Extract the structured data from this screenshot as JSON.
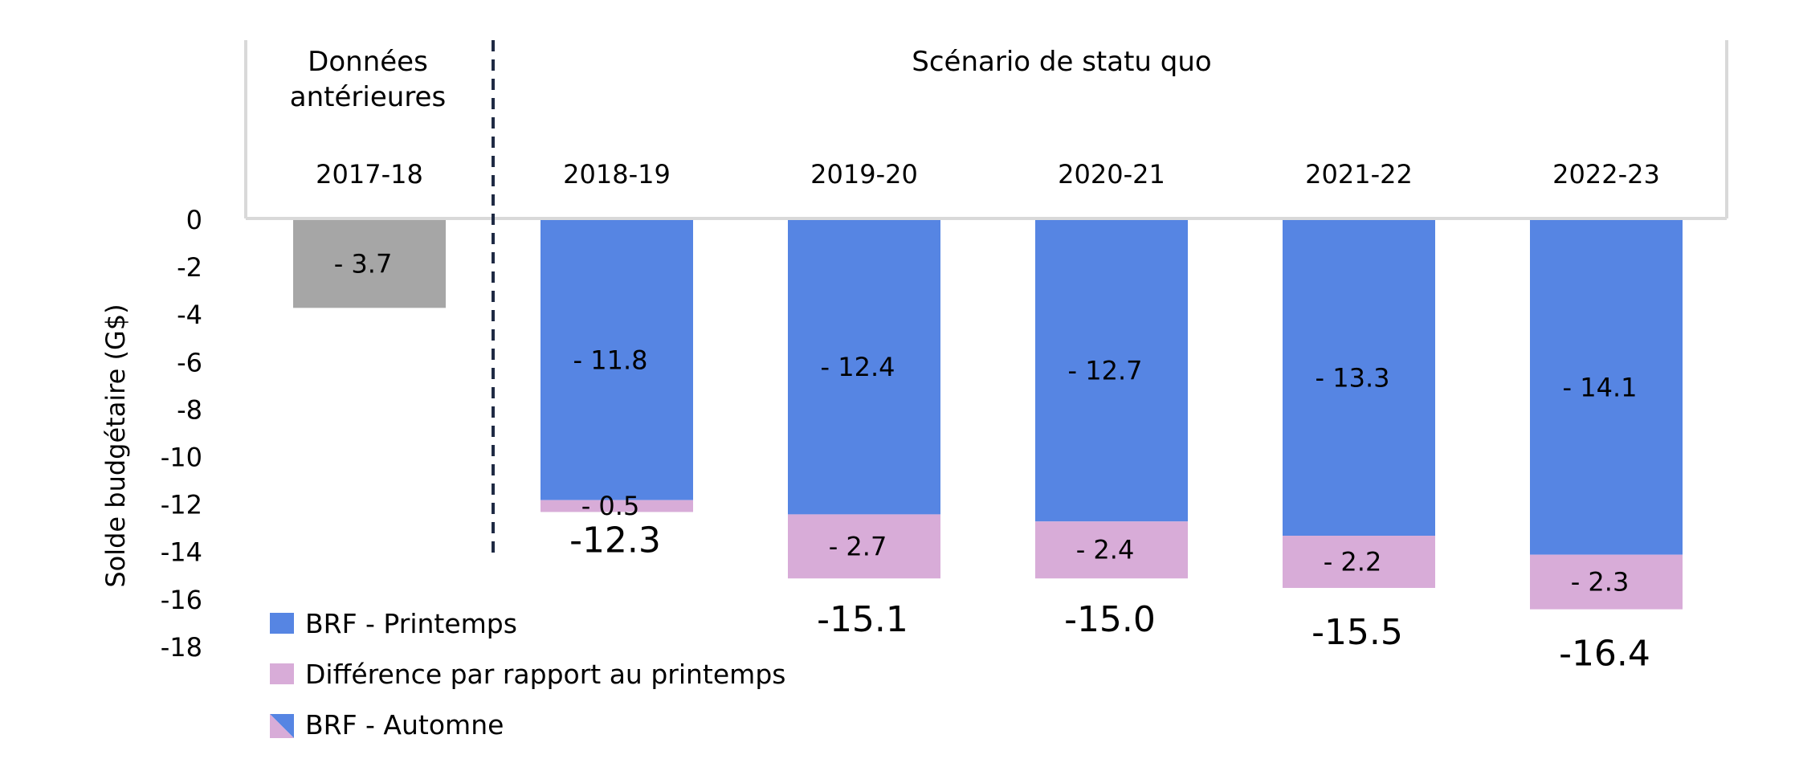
{
  "colors": {
    "historical": "#a6a6a6",
    "spring": "#5685e3",
    "difference": "#d8acd8",
    "frame": "#d9d9d9",
    "divider": "#1f2a44"
  },
  "header": {
    "historical_label_line1": "Données",
    "historical_label_line2": "antérieures",
    "scenario_label": "Scénario de statu quo"
  },
  "legend": {
    "items": [
      {
        "label": "BRF - Printemps",
        "swatch": "spring"
      },
      {
        "label": "Différence par rapport au printemps",
        "swatch": "difference"
      },
      {
        "label": "BRF - Automne",
        "swatch": "split"
      }
    ]
  },
  "chart_data": {
    "type": "bar",
    "stacked": true,
    "categories": [
      "2017-18",
      "2018-19",
      "2019-20",
      "2020-21",
      "2021-22",
      "2022-23"
    ],
    "ylabel": "Solde budgétaire (G$)",
    "ylim": [
      -18,
      0
    ],
    "yticks": [
      0,
      -2,
      -4,
      -6,
      -8,
      -10,
      -12,
      -14,
      -16,
      -18
    ],
    "series": [
      {
        "name": "Données antérieures",
        "values": [
          -3.7,
          null,
          null,
          null,
          null,
          null
        ],
        "labels": [
          "- 3.7",
          "",
          "",
          "",
          "",
          ""
        ]
      },
      {
        "name": "BRF - Printemps",
        "values": [
          null,
          -11.8,
          -12.4,
          -12.7,
          -13.3,
          -14.1
        ],
        "labels": [
          "",
          "- 11.8",
          "- 12.4",
          "- 12.7",
          "- 13.3",
          "- 14.1"
        ]
      },
      {
        "name": "Différence par rapport au printemps",
        "values": [
          null,
          -0.5,
          -2.7,
          -2.4,
          -2.2,
          -2.3
        ],
        "labels": [
          "",
          "- 0.5",
          "- 2.7",
          "- 2.4",
          "- 2.2",
          "- 2.3"
        ]
      }
    ],
    "totals": [
      null,
      "-12.3",
      "-15.1",
      "-15.0",
      "-15.5",
      "-16.4"
    ],
    "grid": false,
    "legend_position": "bottom-left"
  }
}
